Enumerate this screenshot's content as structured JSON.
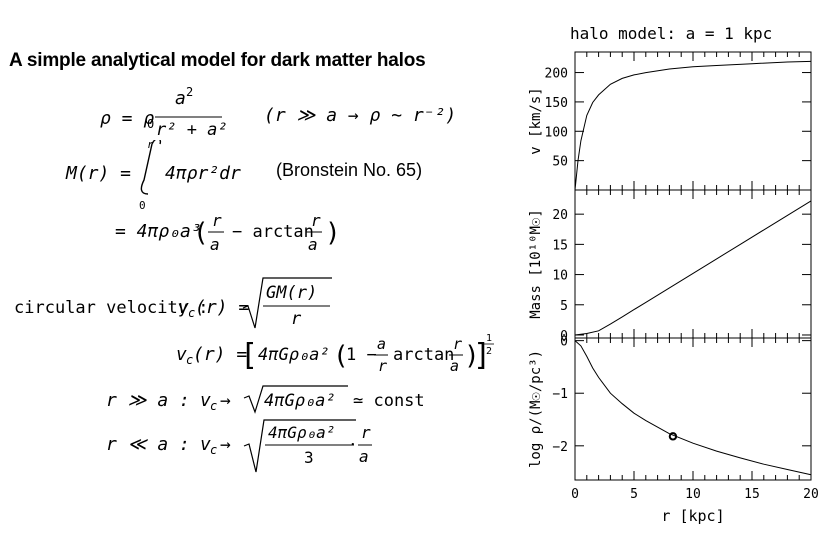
{
  "title": "A simple analytical model for dark matter halos",
  "bronstein_note": "(Bronstein No. 65)",
  "labels": {
    "circular_velocity": "circular velocity :",
    "case_large": "r ≫ a :",
    "case_small": "r ≪ a :",
    "const": "const"
  },
  "equations": {
    "density": "ρ = ρ0 a²/(r² + a²)   (r ≫ a → ρ ~ r⁻²)",
    "mass_integral": "M(r) = ∫0^r 4πρr²dr",
    "mass_result": "= 4πρ0a³ (r/a − arctan r/a)",
    "vc_def": "vc(r) = √(GM(r)/r)",
    "vc_full": "vc(r) = [4πGρ0a² (1 − a/r arctan r/a)]^(1/2)",
    "vc_large": "vc → √(4πGρ0a²) ≃ const",
    "vc_small": "vc → √(4πGρ0a²/3) · r/a"
  },
  "chart_data": [
    {
      "type": "line",
      "title": "halo model: a = 1 kpc",
      "ylabel": "v [km/s]",
      "xlim": [
        0,
        20
      ],
      "ylim": [
        0,
        235
      ],
      "yticks": [
        50,
        100,
        150,
        200
      ],
      "series": [
        {
          "x": [
            0,
            0.25,
            0.5,
            1,
            1.5,
            2,
            3,
            4,
            5,
            6,
            8,
            10,
            12,
            15,
            18,
            20
          ],
          "y": [
            0,
            50,
            84,
            127,
            149,
            162,
            180,
            190,
            196,
            200,
            206,
            210,
            212,
            215,
            218,
            219
          ]
        }
      ]
    },
    {
      "type": "line",
      "ylabel": "Mass [10¹⁰M☉]",
      "xlim": [
        0,
        20
      ],
      "ylim": [
        -0.5,
        24
      ],
      "yticks": [
        0,
        5,
        10,
        15,
        20
      ],
      "series": [
        {
          "x": [
            0,
            1,
            2,
            3,
            4,
            5,
            6,
            8,
            10,
            12,
            14,
            16,
            18,
            20
          ],
          "y": [
            0,
            0.25,
            0.7,
            1.8,
            3.0,
            4.2,
            5.4,
            7.8,
            10.2,
            12.6,
            15.0,
            17.4,
            19.8,
            22.2
          ]
        }
      ]
    },
    {
      "type": "line",
      "xlabel": "r [kpc]",
      "ylabel": "log ρ/(M☉/pc³)",
      "xlim": [
        0,
        20
      ],
      "ylim": [
        -2.65,
        0.05
      ],
      "xticks": [
        0,
        5,
        10,
        15,
        20
      ],
      "yticks": [
        0,
        -1,
        -2
      ],
      "series": [
        {
          "x": [
            0,
            0.5,
            1,
            1.5,
            2,
            3,
            4,
            5,
            6,
            8,
            10,
            12,
            14,
            16,
            18,
            20
          ],
          "y": [
            0,
            -0.1,
            -0.3,
            -0.52,
            -0.7,
            -1.0,
            -1.2,
            -1.38,
            -1.52,
            -1.77,
            -1.95,
            -2.1,
            -2.23,
            -2.35,
            -2.45,
            -2.55
          ]
        }
      ],
      "marker": {
        "x": 8.3,
        "y": -1.82
      }
    }
  ]
}
